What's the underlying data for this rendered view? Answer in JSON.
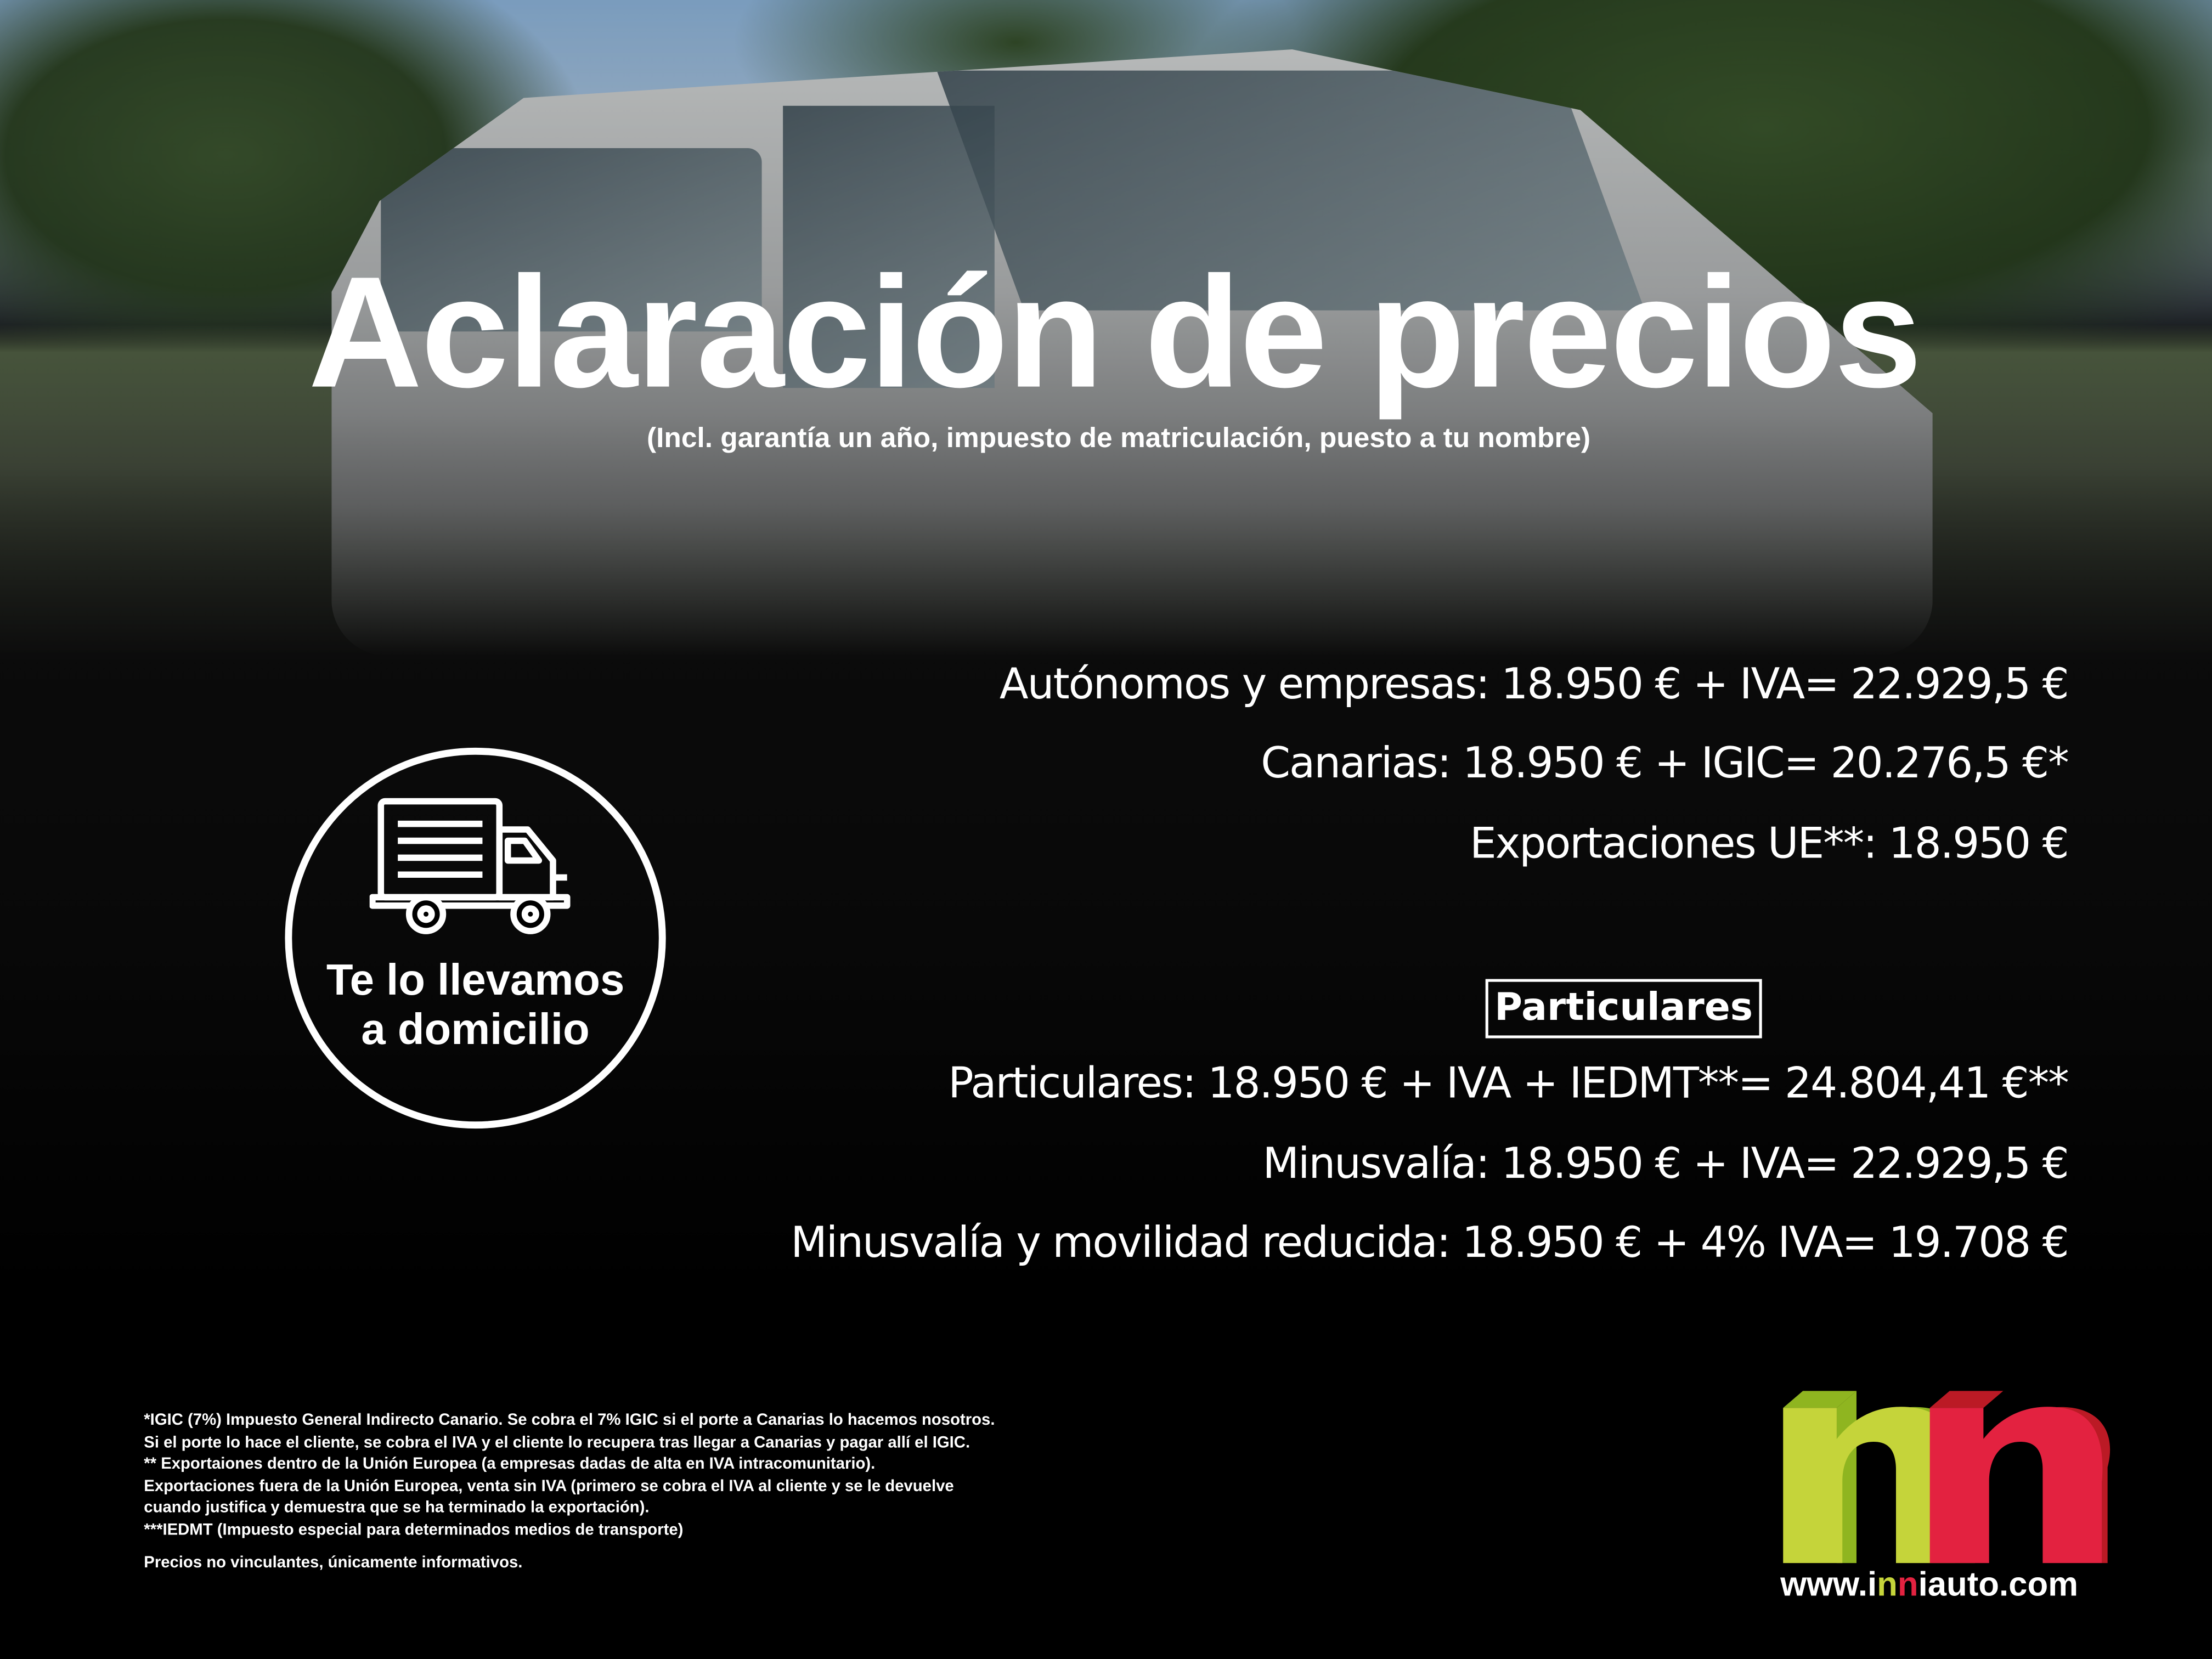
{
  "title": "Aclaración de precios",
  "subtitle": "(Incl. garantía un año, impuesto de matriculación, puesto a tu nombre)",
  "business_prices": [
    "Autónomos y empresas: 18.950 € + IVA= 22.929,5 €",
    "Canarias: 18.950 € + IGIC= 20.276,5 €*",
    "Exportaciones UE**: 18.950 €"
  ],
  "particulares_heading": "Particulares",
  "private_prices": [
    "Particulares: 18.950 € + IVA + IEDMT**= 24.804,41 €**",
    "Minusvalía: 18.950 € + IVA= 22.929,5 €",
    "Minusvalía y movilidad reducida: 18.950 € + 4% IVA= 19.708 €"
  ],
  "delivery_badge": {
    "icon": "delivery-truck-icon",
    "line1": "Te lo llevamos",
    "line2": "a domicilio"
  },
  "footnotes": [
    "*IGIC (7%) Impuesto General Indirecto Canario. Se cobra el 7% IGIC si el porte a Canarias lo hacemos nosotros.",
    "Si el porte lo hace el cliente, se cobra el IVA y el cliente lo recupera tras llegar a Canarias y pagar allí el IGIC.",
    "** Exportaiones dentro de la Unión Europea (a empresas dadas de alta en IVA intracomunitario).",
    "Exportaciones fuera de la Unión Europea, venta sin IVA (primero se cobra el IVA al cliente y se le devuelve",
    "cuando justifica y demuestra que se ha terminado la exportación).",
    "***IEDMT (Impuesto especial para determinados medios de transporte)"
  ],
  "disclaimer": "Precios no vinculantes, únicamente informativos.",
  "logo": {
    "text": "nn",
    "url_parts": [
      "www.i",
      "n",
      "n",
      "iauto.com"
    ],
    "colors": {
      "green": "#c5d43a",
      "green_dark": "#8fb520",
      "red": "#e32240",
      "red_dark": "#bb1a25"
    }
  }
}
